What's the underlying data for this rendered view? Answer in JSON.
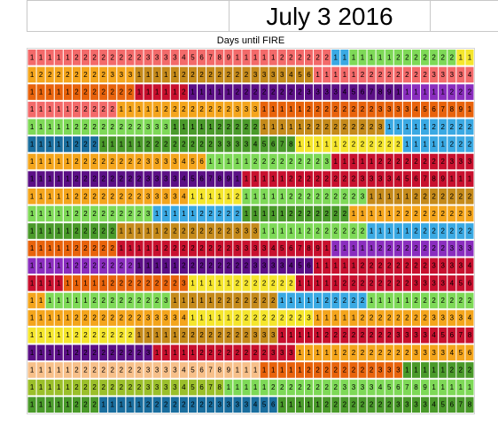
{
  "header": {
    "title": "July 3 2016"
  },
  "chart_data": {
    "type": "heatmap",
    "title": "Days until FIRE",
    "rows": 21,
    "cols": 50,
    "palette": [
      "#5b0f86",
      "#c8102e",
      "#e8630c",
      "#f4a51c",
      "#f5e62d",
      "#7ed957",
      "#3aa9e3",
      "#c58a1a",
      "#4a9a2a",
      "#8a2dbe",
      "#f36a6a",
      "#1a6e9e",
      "#f7c08a",
      "#2e8b57",
      "#9bbf2a"
    ],
    "segments": [
      [
        [
          10,
          0,
          34
        ],
        [
          6,
          0,
          2
        ],
        [
          5,
          0,
          12
        ],
        [
          4,
          0,
          2
        ]
      ],
      [
        [
          3,
          4,
          12
        ],
        [
          7,
          0,
          20
        ],
        [
          10,
          0,
          18
        ]
      ],
      [
        [
          2,
          0,
          12
        ],
        [
          1,
          0,
          6
        ],
        [
          0,
          0,
          24
        ],
        [
          9,
          0,
          8
        ]
      ],
      [
        [
          10,
          0,
          10
        ],
        [
          3,
          0,
          16
        ],
        [
          2,
          0,
          24
        ]
      ],
      [
        [
          5,
          0,
          16
        ],
        [
          8,
          0,
          10
        ],
        [
          7,
          0,
          14
        ],
        [
          6,
          0,
          10
        ]
      ],
      [
        [
          11,
          0,
          8
        ],
        [
          8,
          0,
          22
        ],
        [
          4,
          0,
          12
        ],
        [
          6,
          0,
          8
        ]
      ],
      [
        [
          3,
          0,
          20
        ],
        [
          5,
          0,
          14
        ],
        [
          1,
          0,
          16
        ]
      ],
      [
        [
          0,
          0,
          24
        ],
        [
          1,
          0,
          26
        ]
      ],
      [
        [
          3,
          0,
          18
        ],
        [
          4,
          0,
          6
        ],
        [
          5,
          0,
          14
        ],
        [
          7,
          0,
          12
        ]
      ],
      [
        [
          5,
          0,
          14
        ],
        [
          6,
          0,
          10
        ],
        [
          8,
          0,
          12
        ],
        [
          3,
          0,
          14
        ]
      ],
      [
        [
          8,
          0,
          10
        ],
        [
          7,
          0,
          16
        ],
        [
          5,
          0,
          12
        ],
        [
          6,
          0,
          12
        ]
      ],
      [
        [
          2,
          0,
          10
        ],
        [
          1,
          0,
          24
        ],
        [
          9,
          0,
          16
        ]
      ],
      [
        [
          9,
          0,
          12
        ],
        [
          0,
          0,
          20
        ],
        [
          1,
          0,
          18
        ]
      ],
      [
        [
          1,
          0,
          4
        ],
        [
          2,
          0,
          14
        ],
        [
          4,
          0,
          12
        ],
        [
          1,
          0,
          20
        ]
      ],
      [
        [
          3,
          0,
          2
        ],
        [
          5,
          0,
          14
        ],
        [
          7,
          0,
          12
        ],
        [
          6,
          0,
          10
        ],
        [
          5,
          0,
          12
        ]
      ],
      [
        [
          3,
          0,
          18
        ],
        [
          4,
          0,
          14
        ],
        [
          3,
          0,
          18
        ]
      ],
      [
        [
          4,
          0,
          12
        ],
        [
          7,
          0,
          16
        ],
        [
          1,
          0,
          22
        ]
      ],
      [
        [
          0,
          0,
          14
        ],
        [
          1,
          0,
          16
        ],
        [
          3,
          0,
          20
        ]
      ],
      [
        [
          12,
          0,
          26
        ],
        [
          2,
          0,
          16
        ],
        [
          8,
          0,
          8
        ]
      ],
      [
        [
          14,
          0,
          22
        ],
        [
          5,
          0,
          28
        ]
      ],
      [
        [
          8,
          0,
          8
        ],
        [
          11,
          0,
          20
        ],
        [
          8,
          0,
          22
        ]
      ]
    ]
  }
}
